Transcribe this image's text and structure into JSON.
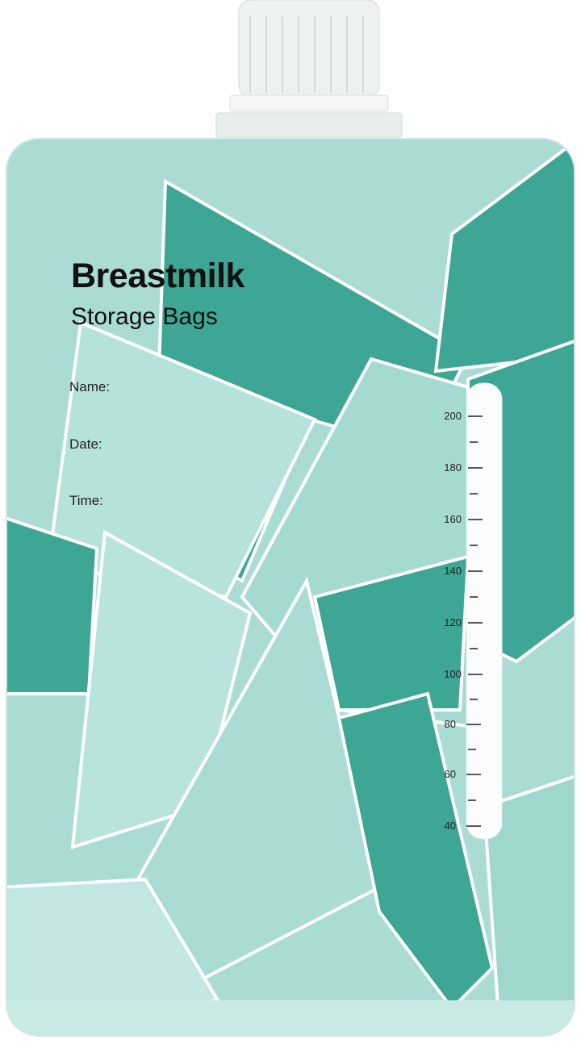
{
  "product": {
    "title_line1": "Breastmilk",
    "title_line2": "Storage Bags",
    "fields": [
      "Name:",
      "Date:",
      "Time:"
    ],
    "scale_labels": [
      "200",
      "180",
      "160",
      "140",
      "120",
      "100",
      "80",
      "60",
      "40"
    ]
  },
  "colors": {
    "light_teal": "#aadcd5",
    "dark_teal": "#3ea695",
    "mid_teal": "#74c6b8",
    "cap": "#f2f4f4"
  }
}
